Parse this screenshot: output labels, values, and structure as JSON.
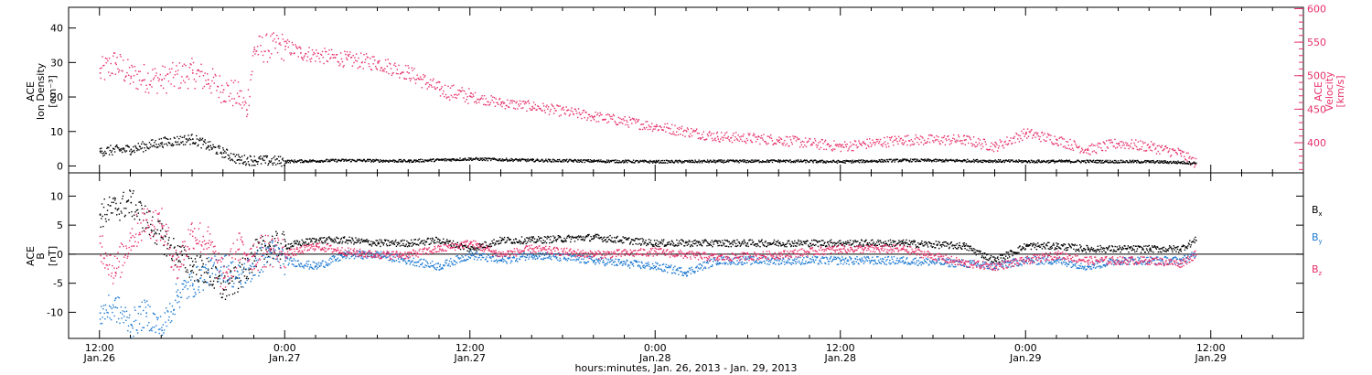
{
  "colors": {
    "black": "#000000",
    "pink": "#e8306a",
    "blue": "#1e7ad2"
  },
  "footer_label": "hours:minutes, Jan. 26, 2013 - Jan. 29, 2013",
  "x_axis": {
    "ticks": [
      {
        "hour": 12,
        "time": "12:00",
        "date": "Jan.26"
      },
      {
        "hour": 24,
        "time": "0:00",
        "date": "Jan.27"
      },
      {
        "hour": 36,
        "time": "12:00",
        "date": "Jan.27"
      },
      {
        "hour": 48,
        "time": "0:00",
        "date": "Jan.28"
      },
      {
        "hour": 60,
        "time": "12:00",
        "date": "Jan.28"
      },
      {
        "hour": 72,
        "time": "0:00",
        "date": "Jan.29"
      },
      {
        "hour": 84,
        "time": "12:00",
        "date": "Jan.29"
      }
    ]
  },
  "chart_data": [
    {
      "type": "scatter",
      "panel": "top",
      "ylabel": [
        "ACE",
        "Ion Density",
        "[cm⁻³]"
      ],
      "ylabel_right": [
        "ACE",
        "Velocity",
        "[km/s]"
      ],
      "ylim": [
        -2,
        46
      ],
      "ylim_right": [
        355,
        602
      ],
      "yticks": [
        0,
        10,
        20,
        30,
        40
      ],
      "yticks_right": [
        400,
        450,
        500,
        550,
        600
      ],
      "series": [
        {
          "color": "black",
          "axis": "left",
          "x": [
            12,
            14,
            16,
            18,
            19,
            20,
            21,
            22,
            24,
            28,
            32,
            36,
            40,
            44,
            48,
            52,
            56,
            60,
            64,
            68,
            72,
            76,
            80,
            82,
            83
          ],
          "y": [
            4.5,
            5,
            7,
            8,
            6,
            4,
            2,
            1.8,
            1.5,
            1.8,
            1.6,
            2.2,
            1.8,
            1.6,
            1.4,
            1.5,
            1.6,
            1.4,
            1.8,
            1.7,
            1.5,
            1.5,
            1.4,
            1.2,
            1
          ]
        },
        {
          "color": "pink",
          "axis": "right",
          "x": [
            12,
            13,
            14,
            16,
            18,
            19,
            20,
            21,
            21.5,
            22,
            24,
            25,
            28,
            30,
            32,
            34,
            36,
            38,
            40,
            44,
            48,
            52,
            56,
            60,
            64,
            68,
            70,
            72,
            74,
            76,
            78,
            80,
            82,
            83
          ],
          "y": [
            505,
            520,
            500,
            495,
            505,
            495,
            480,
            470,
            450,
            540,
            545,
            535,
            525,
            520,
            505,
            480,
            470,
            460,
            455,
            440,
            425,
            410,
            405,
            395,
            405,
            405,
            395,
            415,
            405,
            390,
            400,
            395,
            385,
            370
          ]
        }
      ]
    },
    {
      "type": "scatter",
      "panel": "bottom",
      "ylabel": [
        "ACE",
        "B",
        "[nT]"
      ],
      "ylim": [
        -14.5,
        14
      ],
      "yticks": [
        -10,
        -5,
        0,
        5,
        10
      ],
      "legend": [
        {
          "text": "B",
          "sub": "x",
          "color": "black"
        },
        {
          "text": "B",
          "sub": "y",
          "color": "blue"
        },
        {
          "text": "B",
          "sub": "z",
          "color": "pink"
        }
      ],
      "series": [
        {
          "color": "black",
          "x": [
            12,
            13,
            14,
            15,
            16,
            17,
            18,
            19,
            20,
            21,
            22,
            23,
            24,
            26,
            28,
            30,
            32,
            34,
            36,
            38,
            40,
            44,
            48,
            52,
            56,
            60,
            64,
            68,
            70,
            72,
            74,
            76,
            78,
            80,
            82,
            83
          ],
          "y": [
            7,
            8,
            9,
            6,
            3,
            0,
            -2,
            -3,
            -6,
            -4,
            0,
            1.5,
            1.5,
            2.5,
            2.5,
            2,
            2,
            2.5,
            1,
            2.5,
            2.5,
            3,
            2,
            2,
            2,
            2,
            2,
            1.5,
            -1,
            1.5,
            1.5,
            1,
            1,
            1,
            1,
            2.5
          ]
        },
        {
          "color": "blue",
          "x": [
            12,
            13,
            14,
            15,
            16,
            17,
            18,
            19,
            20,
            21,
            22,
            23,
            24,
            26,
            28,
            30,
            32,
            34,
            36,
            38,
            40,
            44,
            48,
            50,
            52,
            56,
            60,
            64,
            68,
            70,
            72,
            74,
            76,
            78,
            80,
            82,
            83
          ],
          "y": [
            -10,
            -9,
            -12,
            -10,
            -13,
            -7,
            -5,
            -3,
            -2,
            -4,
            -2,
            0.5,
            -1,
            -2,
            0,
            0,
            -1,
            -2,
            0,
            -1,
            0,
            -1,
            -2,
            -3,
            -1,
            -1,
            -1,
            -1,
            -1.5,
            -2,
            -1,
            -1,
            -2,
            -1,
            -1,
            -1,
            0
          ]
        },
        {
          "color": "pink",
          "x": [
            12,
            13,
            14,
            15,
            16,
            17,
            18,
            19,
            20,
            21,
            22,
            23,
            24,
            26,
            28,
            30,
            32,
            34,
            36,
            38,
            40,
            44,
            48,
            52,
            56,
            60,
            64,
            68,
            70,
            72,
            74,
            76,
            78,
            80,
            82,
            83
          ],
          "y": [
            2,
            -3,
            3,
            6,
            5,
            -2,
            4,
            2,
            -4,
            1,
            0,
            1,
            0,
            1.5,
            0.5,
            0,
            0,
            1,
            2,
            0,
            1,
            0,
            0.5,
            -0.5,
            0,
            1,
            1,
            -1.5,
            -2,
            -1,
            0,
            -1,
            -1,
            -1,
            -1.5,
            0
          ]
        }
      ]
    }
  ]
}
